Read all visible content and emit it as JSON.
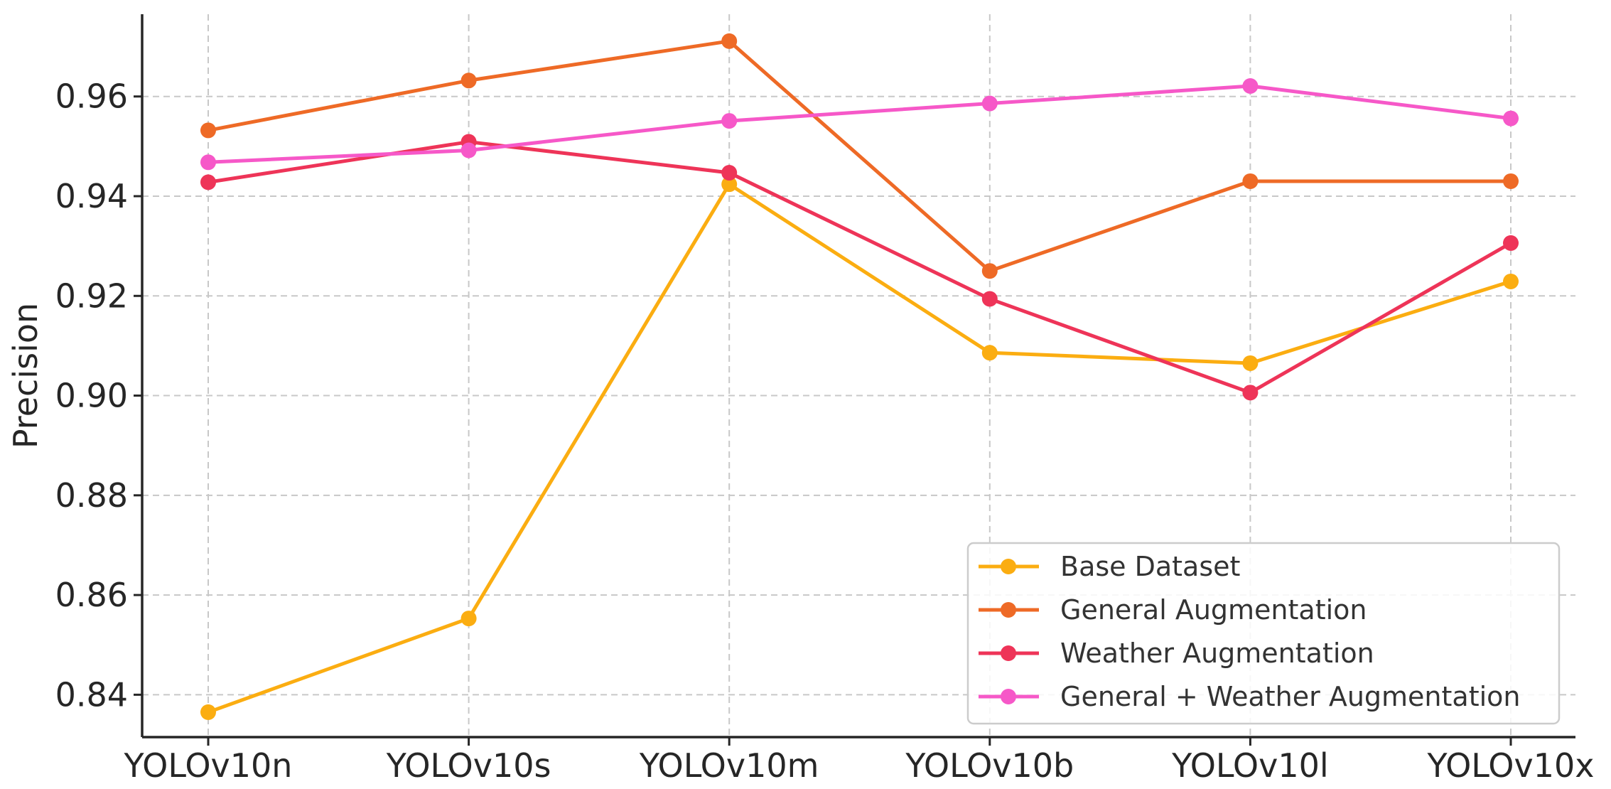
{
  "chart_data": {
    "type": "line",
    "title": "",
    "xlabel": "",
    "ylabel": "Precision",
    "categories": [
      "YOLOv10n",
      "YOLOv10s",
      "YOLOv10m",
      "YOLOv10b",
      "YOLOv10l",
      "YOLOv10x"
    ],
    "ylim": [
      0.8315,
      0.9765
    ],
    "yticks": [
      0.84,
      0.86,
      0.88,
      0.9,
      0.92,
      0.94,
      0.96
    ],
    "ytick_labels": [
      "0.84",
      "0.86",
      "0.88",
      "0.90",
      "0.92",
      "0.94",
      "0.96"
    ],
    "grid": true,
    "legend_position": "lower-right",
    "series": [
      {
        "name": "Base Dataset",
        "color": "#FBAD11",
        "values": [
          0.8365,
          0.8553,
          0.9424,
          0.9086,
          0.9065,
          0.9229
        ]
      },
      {
        "name": "General Augmentation",
        "color": "#EE6A26",
        "values": [
          0.9532,
          0.9632,
          0.9711,
          0.925,
          0.943,
          0.943
        ]
      },
      {
        "name": "Weather Augmentation",
        "color": "#EE3458",
        "values": [
          0.9428,
          0.9509,
          0.9447,
          0.9194,
          0.9006,
          0.9306
        ]
      },
      {
        "name": "General + Weather Augmentation",
        "color": "#F658C8",
        "values": [
          0.9468,
          0.9492,
          0.9551,
          0.9586,
          0.9621,
          0.9556
        ]
      }
    ]
  }
}
